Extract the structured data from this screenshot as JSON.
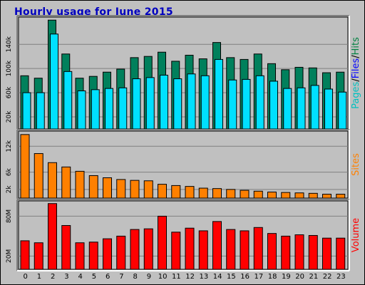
{
  "title": "Hourly usage for June 2015",
  "colors": {
    "hits": "#00805c",
    "files": "#00e0ff",
    "sites": "#ff8000",
    "volume": "#ff0000",
    "pages_label": "#00c0c0",
    "files_label": "#0000ff",
    "hits_label": "#008040",
    "sites_label": "#ff8000",
    "volume_label": "#ff0000"
  },
  "chart_data": [
    {
      "type": "bar",
      "categories": [
        "0",
        "1",
        "2",
        "3",
        "4",
        "5",
        "6",
        "7",
        "8",
        "9",
        "10",
        "11",
        "12",
        "13",
        "14",
        "15",
        "16",
        "17",
        "18",
        "19",
        "20",
        "21",
        "22",
        "23"
      ],
      "series": [
        {
          "name": "Hits",
          "values": [
            88000,
            84000,
            180000,
            124000,
            84000,
            87000,
            94000,
            99000,
            118000,
            120000,
            127000,
            112000,
            122000,
            116000,
            143000,
            118000,
            115000,
            124000,
            108000,
            98000,
            102000,
            101000,
            93000,
            94000
          ]
        },
        {
          "name": "Files",
          "values": [
            60000,
            60000,
            157000,
            95000,
            63000,
            65000,
            67000,
            68000,
            83000,
            85000,
            89000,
            83000,
            91000,
            88000,
            115000,
            81000,
            82000,
            88000,
            79000,
            67000,
            68000,
            72000,
            66000,
            61000
          ]
        }
      ],
      "y_ticks": [
        "20k",
        "60k",
        "100k",
        "140k"
      ],
      "y_tick_values": [
        20000,
        60000,
        100000,
        140000
      ],
      "ylim": [
        0,
        185000
      ],
      "ylabel_parts": [
        "Pages",
        "Files",
        "Hits"
      ]
    },
    {
      "type": "bar",
      "categories": [
        "0",
        "1",
        "2",
        "3",
        "4",
        "5",
        "6",
        "7",
        "8",
        "9",
        "10",
        "11",
        "12",
        "13",
        "14",
        "15",
        "16",
        "17",
        "18",
        "19",
        "20",
        "21",
        "22",
        "23"
      ],
      "series": [
        {
          "name": "Sites",
          "values": [
            14700,
            10300,
            8200,
            7200,
            6200,
            5200,
            4700,
            4300,
            4100,
            4000,
            3200,
            2900,
            2700,
            2300,
            2200,
            2000,
            1800,
            1600,
            1400,
            1300,
            1200,
            1100,
            900,
            900
          ]
        }
      ],
      "y_ticks": [
        "2k",
        "6k",
        "12k"
      ],
      "y_tick_values": [
        2000,
        6000,
        12000
      ],
      "ylim": [
        0,
        15500
      ],
      "ylabel": "Sites"
    },
    {
      "type": "bar",
      "categories": [
        "0",
        "1",
        "2",
        "3",
        "4",
        "5",
        "6",
        "7",
        "8",
        "9",
        "10",
        "11",
        "12",
        "13",
        "14",
        "15",
        "16",
        "17",
        "18",
        "19",
        "20",
        "21",
        "22",
        "23"
      ],
      "series": [
        {
          "name": "Volume",
          "values": [
            43000,
            40000,
            99000,
            66000,
            40000,
            41000,
            46000,
            50000,
            60000,
            61000,
            80000,
            56000,
            62000,
            58000,
            72000,
            60000,
            58000,
            63000,
            54000,
            50000,
            52000,
            51000,
            47000,
            47000
          ]
        }
      ],
      "y_ticks": [
        "20M",
        "80M"
      ],
      "y_tick_values": [
        20000,
        80000
      ],
      "ylim": [
        0,
        103000
      ],
      "ylabel": "Volume"
    }
  ]
}
